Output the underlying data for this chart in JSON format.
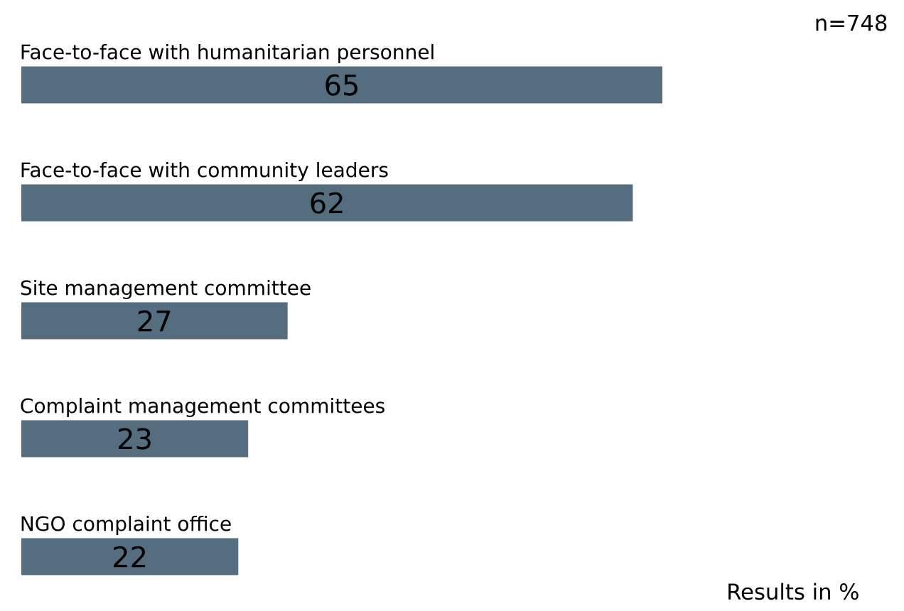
{
  "chart_data": {
    "type": "bar",
    "orientation": "horizontal",
    "categories": [
      "Face-to-face with humanitarian personnel",
      "Face-to-face with community leaders",
      "Site management committee",
      "Complaint management committees",
      "NGO complaint office"
    ],
    "values": [
      65,
      62,
      27,
      23,
      22
    ],
    "color": "#546e7f",
    "data_labels": true,
    "annotations": [
      "n=748",
      "Results in %"
    ]
  }
}
